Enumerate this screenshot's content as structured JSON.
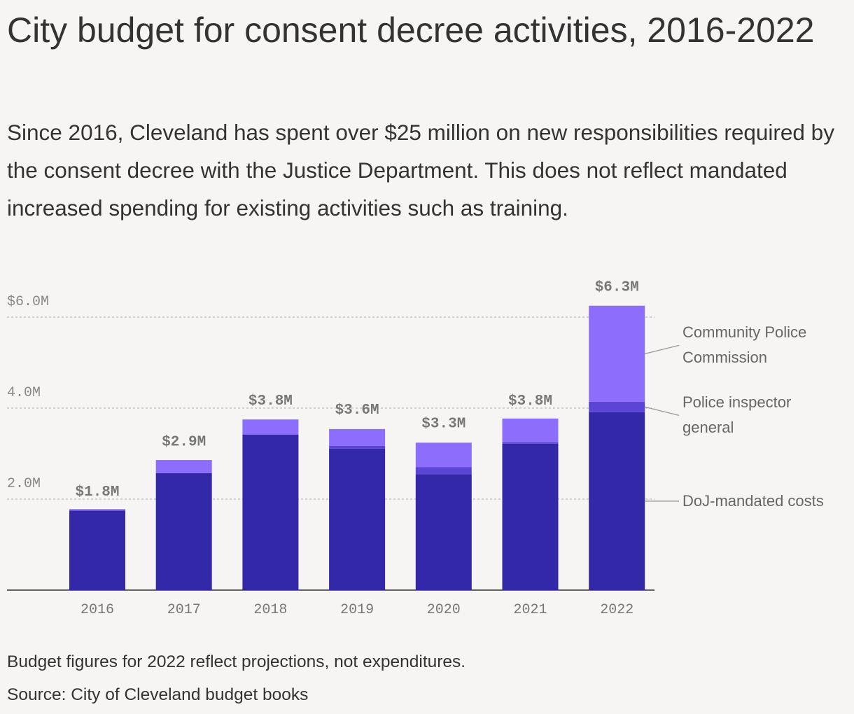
{
  "chart_data": {
    "type": "stacked-bar",
    "title": "City budget for consent decree activities, 2016-2022",
    "subtitle": "Since 2016, Cleveland has spent over $25 million on new responsibilities required by the consent decree with the Justice Department. This does not reflect mandated increased spending for existing activities such as training.",
    "note": "Budget figures for 2022 reflect projections, not expenditures.",
    "source": "Source: City of Cleveland budget books",
    "categories": [
      "2016",
      "2017",
      "2018",
      "2019",
      "2020",
      "2021",
      "2022"
    ],
    "series": [
      {
        "name": "DoJ-mandated costs",
        "color": "#3328a8",
        "values": [
          1.74,
          2.57,
          3.42,
          3.11,
          2.55,
          3.22,
          3.91
        ]
      },
      {
        "name": "Police inspector general",
        "color": "#5a45d6",
        "values": [
          0.02,
          0,
          0,
          0.06,
          0.15,
          0.03,
          0.23
        ]
      },
      {
        "name": "Community Police Commission",
        "color": "#8c6dfc",
        "values": [
          0.02,
          0.29,
          0.33,
          0.37,
          0.54,
          0.52,
          2.11
        ]
      }
    ],
    "totals": {
      "values": [
        1.8,
        2.9,
        3.8,
        3.6,
        3.3,
        3.8,
        6.3
      ],
      "value_labels": [
        "$1.8M",
        "$2.9M",
        "$3.8M",
        "$3.6M",
        "$3.3M",
        "$3.8M",
        "$6.3M"
      ]
    },
    "ylim": [
      0,
      6.3
    ],
    "yticks": [
      {
        "value": 2,
        "label": "2.0M"
      },
      {
        "value": 4,
        "label": "4.0M"
      },
      {
        "value": 6,
        "label": "$6.0M"
      }
    ],
    "grid": true
  }
}
